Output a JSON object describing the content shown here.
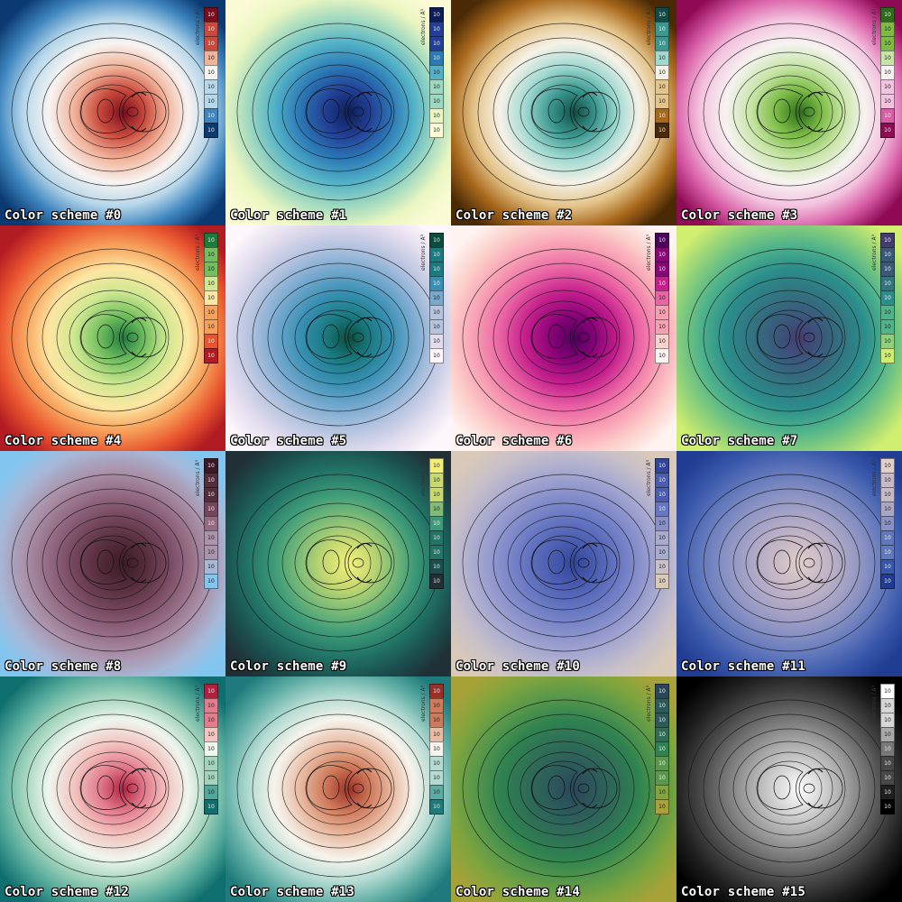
{
  "colorbar_label": "electrons / Å³",
  "colorbar_tick": "10",
  "panels": [
    {
      "caption": "Color scheme #0",
      "stops": [
        "#0b3a73",
        "#3f86bf",
        "#b7d7ea",
        "#f7f4f2",
        "#f2b39a",
        "#c94a3c",
        "#7a0c1e"
      ]
    },
    {
      "caption": "Color scheme #1",
      "stops": [
        "#fbfbd6",
        "#eaf6c1",
        "#9dd8c0",
        "#52b1c7",
        "#2b78b5",
        "#223f95",
        "#0c1e58"
      ]
    },
    {
      "caption": "Color scheme #2",
      "stops": [
        "#4a2a05",
        "#a8681c",
        "#e4c48a",
        "#f6f2e8",
        "#9fd9d1",
        "#3a978f",
        "#0f4c45"
      ]
    },
    {
      "caption": "Color scheme #3",
      "stops": [
        "#8f0a55",
        "#d85ea7",
        "#f4c3df",
        "#f6f3f1",
        "#c7e5a6",
        "#7cbc45",
        "#2c6b19"
      ]
    },
    {
      "caption": "Color scheme #4",
      "stops": [
        "#b11b22",
        "#e8542e",
        "#f7a05a",
        "#fde7a3",
        "#cfe891",
        "#72bf5f",
        "#1c7a3b"
      ]
    },
    {
      "caption": "Color scheme #5",
      "stops": [
        "#fdf6fb",
        "#e3dcee",
        "#b6c4e0",
        "#77a9cf",
        "#3990b4",
        "#1a7b82",
        "#0a4d3e"
      ]
    },
    {
      "caption": "Color scheme #6",
      "stops": [
        "#fff4f1",
        "#fcd0cb",
        "#f89fb4",
        "#ea64a4",
        "#c41f8c",
        "#8a0378",
        "#4f005f"
      ]
    },
    {
      "caption": "Color scheme #7",
      "stops": [
        "#d0ee6f",
        "#8ed17a",
        "#4fb38b",
        "#2b8d8b",
        "#327480",
        "#3a587c",
        "#443c70"
      ]
    },
    {
      "caption": "Color scheme #8",
      "stops": [
        "#82c6f0",
        "#a7b8d8",
        "#aa93ab",
        "#936a82",
        "#74465c",
        "#552c3b",
        "#3a1a24"
      ]
    },
    {
      "caption": "Color scheme #9",
      "stops": [
        "#203036",
        "#1b4f4f",
        "#227467",
        "#3e9b78",
        "#7fbd77",
        "#c7d970",
        "#f3f07a"
      ]
    },
    {
      "caption": "Color scheme #10",
      "stops": [
        "#d8c9b9",
        "#c8c0c9",
        "#a9aad0",
        "#8890cb",
        "#6676c2",
        "#4b5db0",
        "#334599"
      ]
    },
    {
      "caption": "Color scheme #11",
      "stops": [
        "#213d93",
        "#3856aa",
        "#6077bb",
        "#8a92c3",
        "#aca6c6",
        "#c8b9c6",
        "#e1d0ca"
      ]
    },
    {
      "caption": "Color scheme #12",
      "stops": [
        "#0f6e6e",
        "#52a89a",
        "#a2d4bc",
        "#eef6ee",
        "#f3c4c0",
        "#e37d8e",
        "#b0203e"
      ]
    },
    {
      "caption": "Color scheme #13",
      "stops": [
        "#1e7a7b",
        "#5daca4",
        "#b3dbd2",
        "#f6f4ec",
        "#e9bba3",
        "#cf7a5a",
        "#9a2f26"
      ]
    },
    {
      "caption": "Color scheme #14",
      "stops": [
        "#a7a238",
        "#82a53d",
        "#58984a",
        "#2f8350",
        "#2f6d57",
        "#2c5a5b",
        "#2a465a"
      ]
    },
    {
      "caption": "Color scheme #15",
      "stops": [
        "#000000",
        "#1e1e1e",
        "#474747",
        "#777777",
        "#a9a9a9",
        "#d6d6d6",
        "#ffffff"
      ]
    }
  ]
}
